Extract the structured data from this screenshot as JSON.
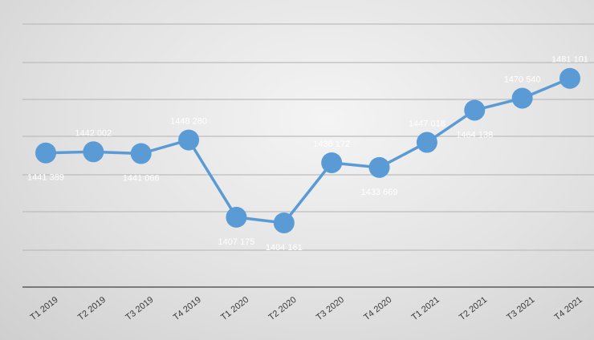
{
  "chart_data": {
    "type": "line",
    "title": "",
    "xlabel": "",
    "ylabel": "",
    "categories": [
      "T1 2019",
      "T2 2019",
      "T3 2019",
      "T4 2019",
      "T1 2020",
      "T2 2020",
      "T3 2020",
      "T4 2020",
      "T1 2021",
      "T2 2021",
      "T3 2021",
      "T4 2021"
    ],
    "series": [
      {
        "values": [
          1441389,
          1442002,
          1441066,
          1448280,
          1407175,
          1404161,
          1436172,
          1433669,
          1447018,
          1464138,
          1470540,
          1481101
        ],
        "labels": [
          "1441 389",
          "1442 002",
          "1441 066",
          "1448 280",
          "1407 175",
          "1404 161",
          "1436 172",
          "1433 669",
          "1447 018",
          "1464 138",
          "1470 540",
          "1481 101"
        ],
        "label_positions": [
          "below",
          "above",
          "below",
          "above",
          "below",
          "below",
          "above",
          "below",
          "above",
          "below",
          "above",
          "above"
        ],
        "color": "#5b9bd5"
      }
    ],
    "ylim": [
      1370000,
      1510000
    ],
    "grid": true,
    "legend": "none"
  }
}
